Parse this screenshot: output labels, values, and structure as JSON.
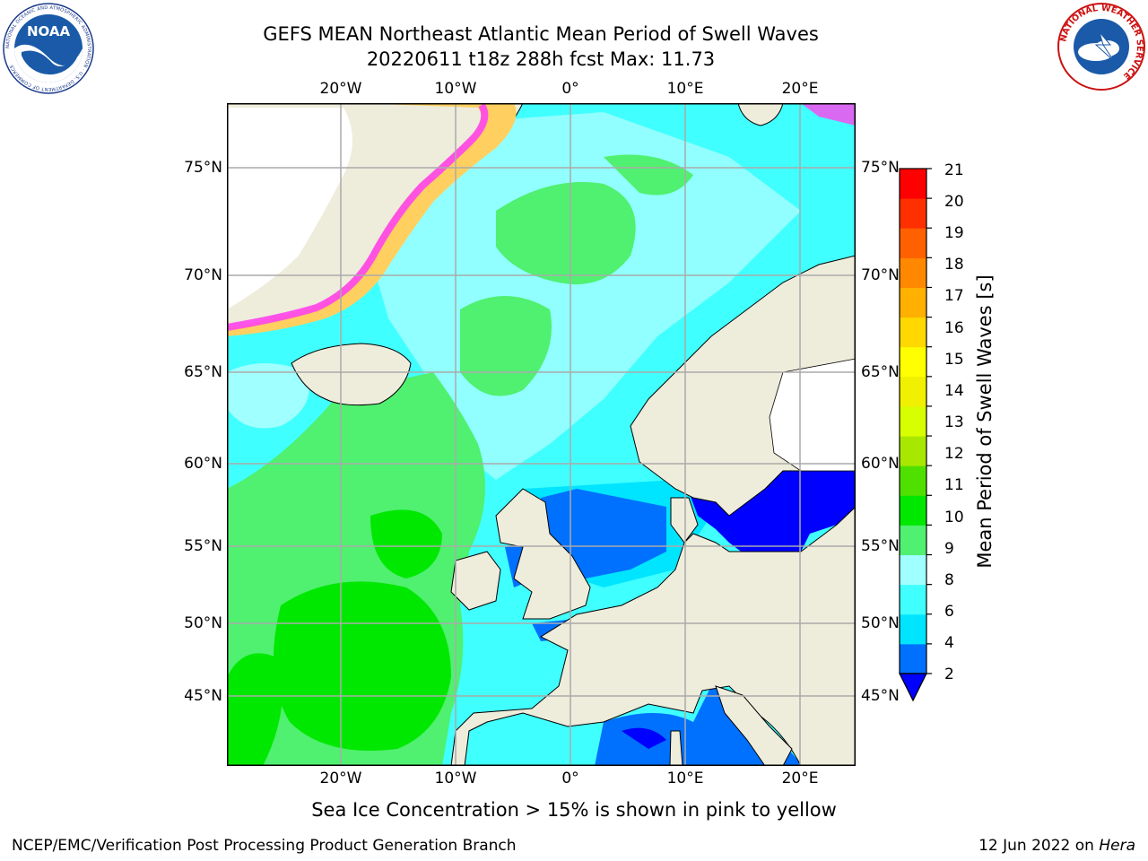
{
  "title": {
    "line1": "GEFS MEAN Northeast Atlantic Mean Period of Swell Waves",
    "line2": "20220611 t18z 288h fcst   Max: 11.73"
  },
  "map": {
    "lon_labels": [
      "20°W",
      "10°W",
      "0°",
      "10°E",
      "20°E"
    ],
    "lat_labels": [
      "75°N",
      "70°N",
      "65°N",
      "60°N",
      "55°N",
      "50°N",
      "45°N"
    ],
    "colors": {
      "land": "#eeecdb",
      "ocean_default": "#00ffff",
      "ice_edge": "#ff44ee",
      "ice_core": "#ffd060",
      "grid": "#aaaaaa"
    }
  },
  "colorbar": {
    "label": "Mean Period of Swell Waves [s]",
    "ticks": [
      "21",
      "20",
      "19",
      "18",
      "17",
      "16",
      "15",
      "14",
      "13",
      "12",
      "11",
      "10",
      "9",
      "8",
      "6",
      "4",
      "2"
    ],
    "colors_bottom_to_top": [
      "#0070ff",
      "#00e5ff",
      "#40ffff",
      "#a0ffff",
      "#50f070",
      "#00e800",
      "#50e000",
      "#a8e800",
      "#d8ff00",
      "#f0f000",
      "#ffff00",
      "#ffd800",
      "#ffb000",
      "#ff8800",
      "#ff6000",
      "#ff3000",
      "#ff0000"
    ],
    "under_color": "#0000ff"
  },
  "caption": "Sea Ice Concentration > 15% is shown in pink to yellow",
  "footer": {
    "left": "NCEP/EMC/Verification Post Processing Product Generation Branch",
    "right_date": "12 Jun 2022 on ",
    "right_host": "Hera"
  },
  "logos": {
    "noaa_text": "NOAA",
    "noaa_ring": "NATIONAL OCEANIC AND ATMOSPHERIC ADMINISTRATION · U.S. DEPARTMENT OF COMMERCE",
    "nws_ring": "NATIONAL WEATHER SERVICE"
  }
}
